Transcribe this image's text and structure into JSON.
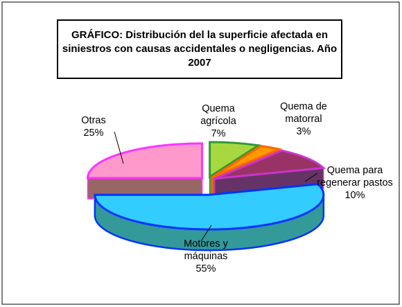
{
  "chart_data": {
    "type": "pie3d",
    "title": "GRÁFICO: Distribución del la superficie afectada en siniestros con causas accidentales o negligencias. Año 2007",
    "categories": [
      "Quema agrícola",
      "Quema de matorral",
      "Quema para regenerar pastos",
      "Motores y máquinas",
      "Otras"
    ],
    "values": [
      7,
      3,
      10,
      55,
      25
    ],
    "value_labels": [
      "7%",
      "3%",
      "10%",
      "55%",
      "25%"
    ],
    "colors": [
      "#a8d840",
      "#ff9900",
      "#993366",
      "#33ccff",
      "#ff99cc"
    ],
    "edge_colors": [
      "#339933",
      "#ff6600",
      "#cc33cc",
      "#0033ff",
      "#ff33ff"
    ],
    "side_colors": [
      "#669933",
      "#cc6600",
      "#663366",
      "#339999",
      "#996666"
    ]
  }
}
